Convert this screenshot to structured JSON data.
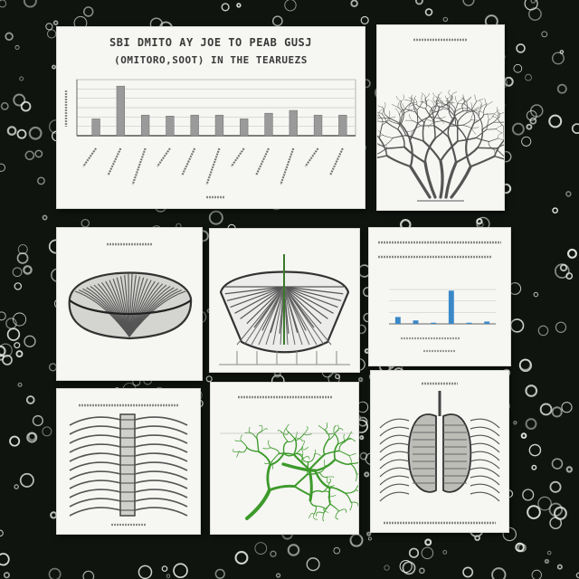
{
  "title_lines": [
    "SBI DMITO AY JOE TO PEAB GUSJ",
    "(OMITORO,SOOT) IN THE TEARUEZS"
  ],
  "palette": {
    "background": "#0f140f",
    "speckle": "#e8ece6",
    "card": "#f6f6f3",
    "ink": "#444444",
    "bar": "#9a9a9a",
    "accent_blue": "#3a88c8",
    "leaf_green": "#3c9a2a"
  },
  "panels": [
    {
      "name": "bar-chart-panel",
      "subject": "bar chart"
    },
    {
      "name": "tree-roots-panel",
      "subject": "branching roots sketch"
    },
    {
      "name": "leaf-venation-panel",
      "subject": "leaf venation cross-section"
    },
    {
      "name": "radial-fan-panel",
      "subject": "radial fan structure"
    },
    {
      "name": "small-chart-panel",
      "subject": "small bar chart with blue bars"
    },
    {
      "name": "spine-ribs-panel",
      "subject": "spine and ribs sketch"
    },
    {
      "name": "green-branches-panel",
      "subject": "green branching plant"
    },
    {
      "name": "lung-panel",
      "subject": "paired lung-like organ"
    }
  ],
  "chart_data": [
    {
      "type": "bar",
      "series": [
        {
          "values": [
            18,
            53,
            22,
            21,
            22,
            22,
            18,
            24,
            27,
            22,
            22
          ]
        }
      ],
      "ylim": [
        0,
        60
      ]
    },
    {
      "type": "bar",
      "series": [
        {
          "values": [
            6,
            3,
            1,
            29,
            1,
            2
          ]
        }
      ],
      "ylim": [
        0,
        30
      ]
    }
  ]
}
